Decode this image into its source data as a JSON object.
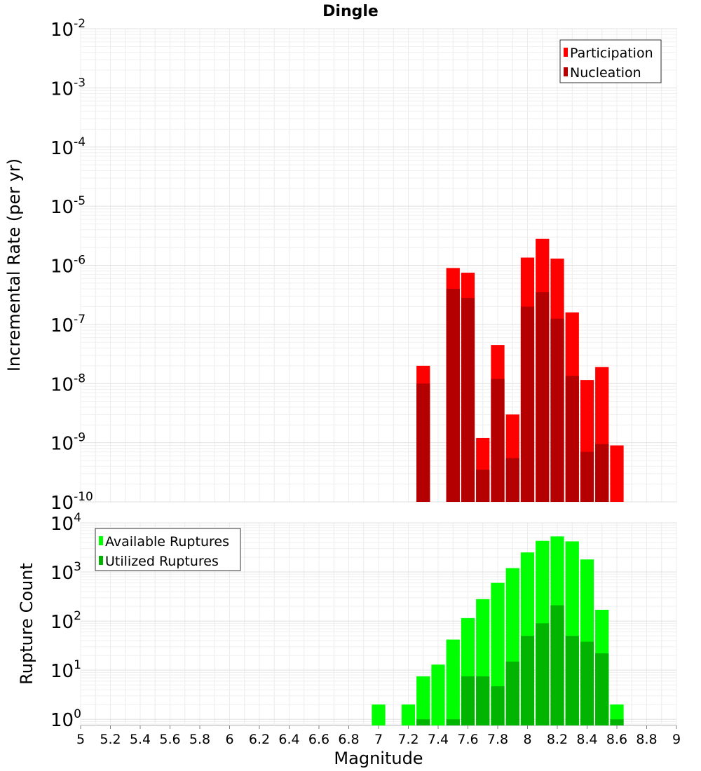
{
  "chart_data": [
    {
      "type": "bar",
      "title": "Dingle",
      "xlabel": "",
      "ylabel": "Incremental Rate (per yr)",
      "yscale": "log",
      "ylim": [
        1e-10,
        0.01
      ],
      "xlim": [
        5,
        9
      ],
      "grid": true,
      "legend_position": "top-right",
      "y_tick_mantissa": [
        "10",
        "10",
        "10",
        "10",
        "10",
        "10",
        "10",
        "10",
        "10"
      ],
      "y_tick_exponents": [
        "-10",
        "-9",
        "-8",
        "-7",
        "-6",
        "-5",
        "-4",
        "-3",
        "-2"
      ],
      "x": [
        7.3,
        7.5,
        7.6,
        7.7,
        7.8,
        7.9,
        8.0,
        8.1,
        8.2,
        8.3,
        8.4,
        8.5,
        8.6
      ],
      "series": [
        {
          "name": "Participation",
          "color": "#ff0000",
          "values": [
            2e-08,
            9e-07,
            7.5e-07,
            1.2e-09,
            4.5e-08,
            3e-09,
            1.35e-06,
            2.8e-06,
            1.3e-06,
            1.6e-07,
            1.15e-08,
            1.9e-08,
            9e-10
          ]
        },
        {
          "name": "Nucleation",
          "color": "#b40000",
          "values": [
            1e-08,
            4e-07,
            2.8e-07,
            3.5e-10,
            1.2e-08,
            5.5e-10,
            2e-07,
            3.5e-07,
            1.25e-07,
            1.35e-08,
            7e-10,
            9.5e-10,
            null
          ]
        }
      ]
    },
    {
      "type": "bar",
      "title": "",
      "xlabel": "Magnitude",
      "ylabel": "Rupture Count",
      "yscale": "log",
      "ylim": [
        0.75,
        10000
      ],
      "xlim": [
        5,
        9
      ],
      "grid": true,
      "legend_position": "top-left",
      "x_ticks": [
        "5",
        "5.2",
        "5.4",
        "5.6",
        "5.8",
        "6",
        "6.2",
        "6.4",
        "6.6",
        "6.8",
        "7",
        "7.2",
        "7.4",
        "7.6",
        "7.8",
        "8",
        "8.2",
        "8.4",
        "8.6",
        "8.8",
        "9"
      ],
      "y_tick_mantissa": [
        "10",
        "10",
        "10",
        "10",
        "10"
      ],
      "y_tick_exponents": [
        "0",
        "1",
        "2",
        "3",
        "4"
      ],
      "x": [
        7.0,
        7.2,
        7.3,
        7.4,
        7.5,
        7.6,
        7.7,
        7.8,
        7.9,
        8.0,
        8.1,
        8.2,
        8.3,
        8.4,
        8.5,
        8.6
      ],
      "series": [
        {
          "name": "Available Ruptures",
          "color": "#00ff00",
          "values": [
            2,
            2,
            7.5,
            13,
            42,
            115,
            280,
            600,
            1200,
            2500,
            4300,
            5300,
            4200,
            1800,
            170,
            2
          ]
        },
        {
          "name": "Utilized Ruptures",
          "color": "#00b400",
          "values": [
            null,
            null,
            1,
            null,
            1,
            7.5,
            7.5,
            4.7,
            15,
            50,
            90,
            210,
            50,
            38,
            22,
            1
          ]
        }
      ]
    }
  ]
}
